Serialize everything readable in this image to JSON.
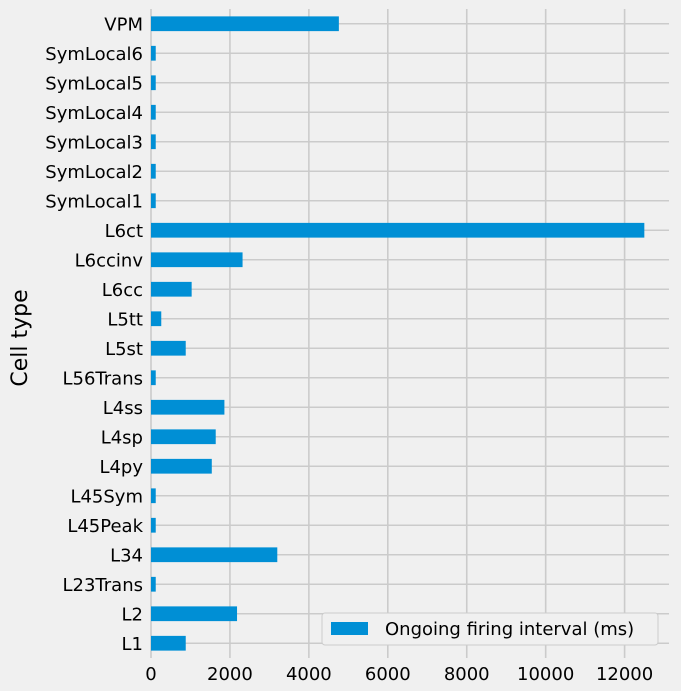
{
  "chart_data": {
    "type": "bar",
    "orientation": "horizontal",
    "categories": [
      "L1",
      "L2",
      "L23Trans",
      "L34",
      "L45Peak",
      "L45Sym",
      "L4py",
      "L4sp",
      "L4ss",
      "L56Trans",
      "L5st",
      "L5tt",
      "L6cc",
      "L6ccinv",
      "L6ct",
      "SymLocal1",
      "SymLocal2",
      "SymLocal3",
      "SymLocal4",
      "SymLocal5",
      "SymLocal6",
      "VPM"
    ],
    "series": [
      {
        "name": "Ongoing firing interval (ms)",
        "color": "#008fd5",
        "values": [
          880,
          2180,
          120,
          3200,
          120,
          120,
          1540,
          1640,
          1860,
          120,
          880,
          260,
          1030,
          2320,
          12500,
          120,
          120,
          120,
          120,
          120,
          120,
          4760
        ]
      }
    ],
    "title": "",
    "xlabel": "",
    "ylabel": "Cell type",
    "xlim": [
      0,
      13125
    ],
    "xticks": [
      0,
      2000,
      4000,
      6000,
      8000,
      10000,
      12000
    ],
    "xtick_labels": [
      "0",
      "2000",
      "4000",
      "6000",
      "8000",
      "10000",
      "12000"
    ],
    "grid": true,
    "legend_position": "lower-right",
    "colors": {
      "background": "#f0f0f0",
      "grid": "#cbcbcb",
      "bar": "#008fd5"
    }
  }
}
